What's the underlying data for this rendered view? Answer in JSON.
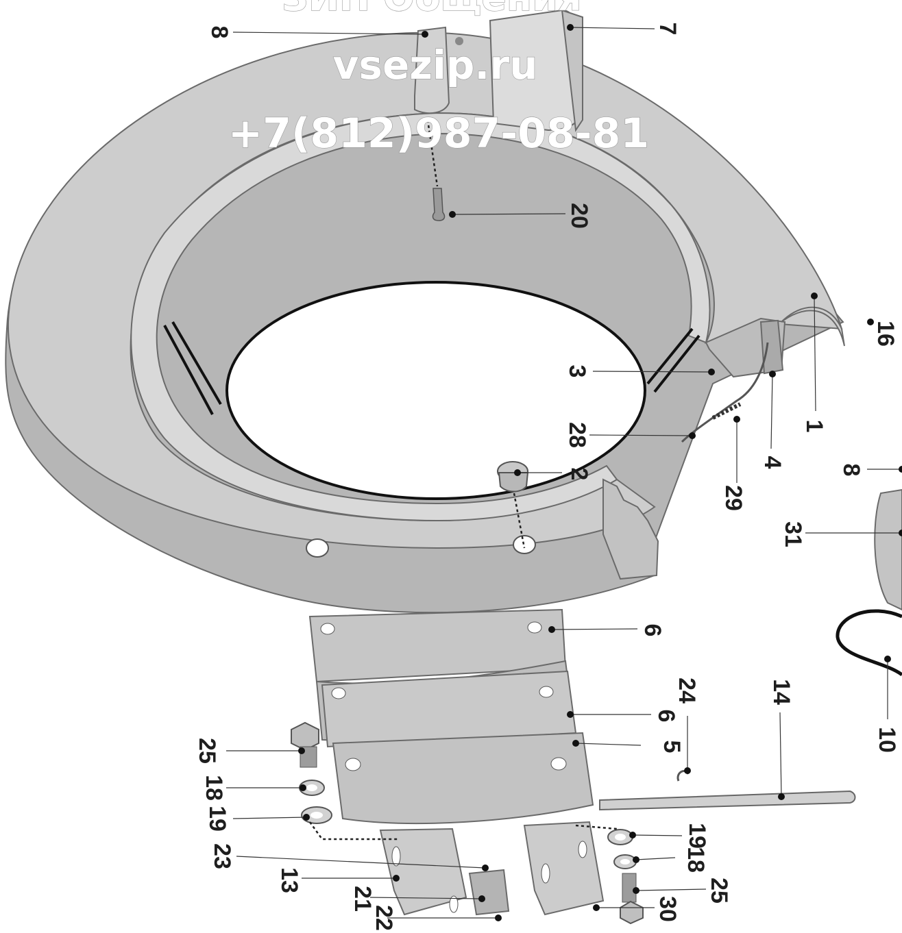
{
  "watermark": {
    "header": "ЗИП Общения",
    "site": "vsezip.ru",
    "phone": "+7(812)987-08-81"
  },
  "callouts": [
    "8",
    "7",
    "20",
    "16",
    "3",
    "1",
    "28",
    "4",
    "2",
    "29",
    "8",
    "31",
    "6",
    "10",
    "24",
    "14",
    "6",
    "5",
    "25",
    "18",
    "19",
    "23",
    "13",
    "21",
    "22",
    "19",
    "18",
    "25",
    "30"
  ],
  "colors": {
    "part_fill": "#c8c8c8",
    "part_dark": "#b0b0b0",
    "line": "#333333",
    "watermark": "#ffffff"
  }
}
